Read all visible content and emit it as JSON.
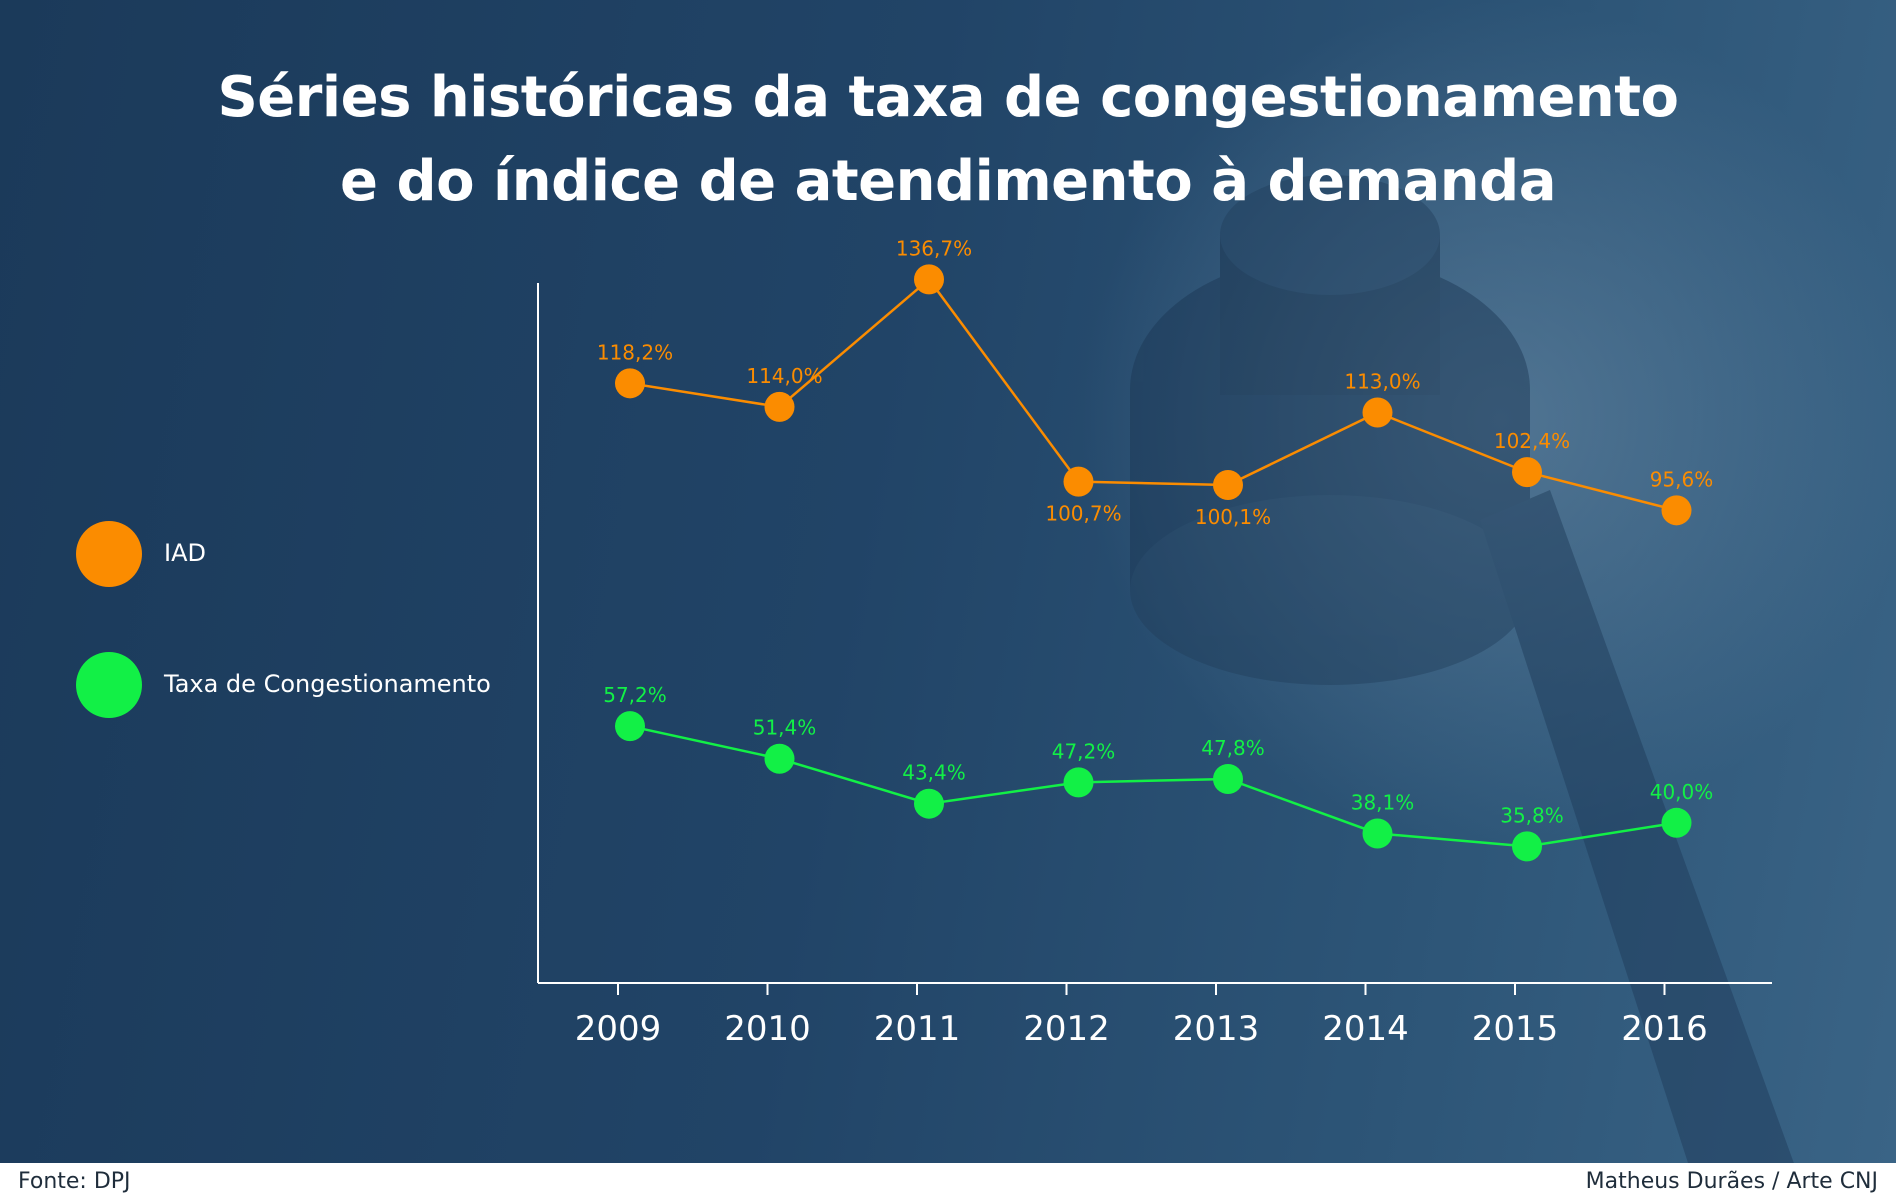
{
  "title": {
    "line1": "Séries históricas da taxa de congestionamento",
    "line2": "e do índice de atendimento à demanda"
  },
  "legend": [
    {
      "label": "IAD",
      "color": "#fb8c00"
    },
    {
      "label": "Taxa de Congestionamento",
      "color": "#12f046"
    }
  ],
  "chart_data": {
    "type": "line",
    "x": [
      "2009",
      "2010",
      "2011",
      "2012",
      "2013",
      "2014",
      "2015",
      "2016"
    ],
    "series": [
      {
        "name": "IAD",
        "color": "#fb8c00",
        "values": [
          118.2,
          114.0,
          136.7,
          100.7,
          100.1,
          113.0,
          102.4,
          95.6
        ],
        "labels": [
          "118,2%",
          "114,0%",
          "136,7%",
          "100,7%",
          "100,1%",
          "113,0%",
          "102,4%",
          "95,6%"
        ]
      },
      {
        "name": "Taxa de Congestionamento",
        "color": "#12f046",
        "values": [
          57.2,
          51.4,
          43.4,
          47.2,
          47.8,
          38.1,
          35.8,
          40.0
        ],
        "labels": [
          "57,2%",
          "51,4%",
          "43,4%",
          "47,2%",
          "47,8%",
          "38,1%",
          "35,8%",
          "40,0%"
        ]
      }
    ],
    "grid": false,
    "y_axis_labels": false,
    "legend_position": "left"
  },
  "footer": {
    "source": "Fonte: DPJ",
    "credit": "Matheus Durães / Arte CNJ"
  }
}
